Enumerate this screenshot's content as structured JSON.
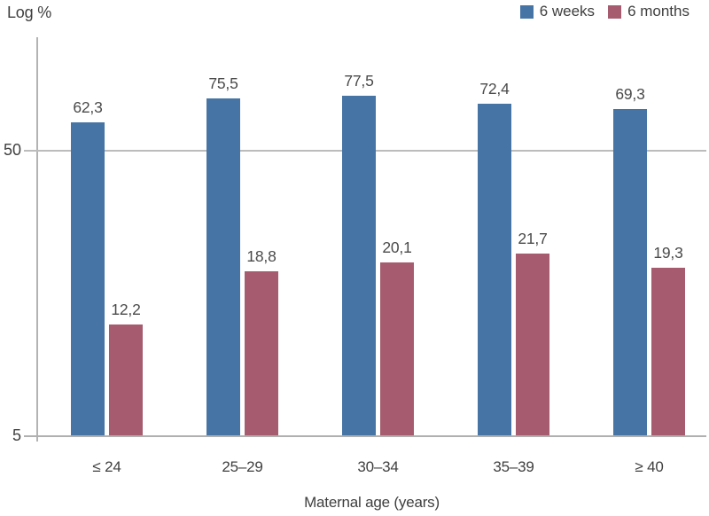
{
  "chart_data": {
    "type": "bar",
    "title": "Log %",
    "xlabel": "Maternal age (years)",
    "ylabel": "Log %",
    "scale": "log10",
    "categories": [
      "≤ 24",
      "25–29",
      "30–34",
      "35–39",
      "≥ 40"
    ],
    "series": [
      {
        "name": "6 weeks",
        "color": "#4674a4",
        "values": [
          62.3,
          75.5,
          77.5,
          72.4,
          69.3
        ]
      },
      {
        "name": "6 months",
        "color": "#a65c6e",
        "values": [
          12.2,
          18.8,
          20.1,
          21.7,
          19.3
        ]
      }
    ],
    "decimal_separator": ",",
    "y_ticks": [
      {
        "value": 50,
        "label": "50"
      },
      {
        "value": 5,
        "label": "5"
      }
    ],
    "y_baseline_value": 5,
    "ylim": [
      5,
      125
    ],
    "gridlines_at": [
      50
    ],
    "grid": true,
    "legend_position": "top-right"
  },
  "colors": {
    "six_weeks": "#4674a4",
    "six_months": "#a65c6e",
    "axis_line": "#b3b3b3",
    "grid_line": "#bcbcbc",
    "text": "#3f3f3f",
    "background": "#ffffff"
  }
}
